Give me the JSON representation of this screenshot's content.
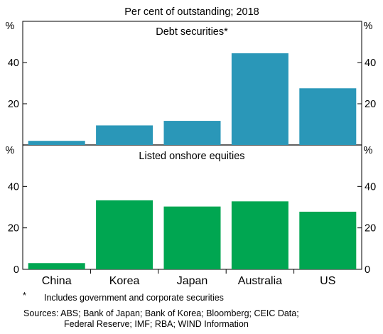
{
  "chart_data": [
    {
      "type": "bar",
      "title": "Debt securities*",
      "subtitle": "Per cent of outstanding; 2018",
      "categories": [
        "China",
        "Korea",
        "Japan",
        "Australia",
        "US"
      ],
      "values": [
        2,
        9.5,
        11.7,
        44.5,
        27.5
      ],
      "ylabel": "%",
      "ylim": [
        0,
        60
      ],
      "yticks": [
        20,
        40
      ],
      "color": "#2a97b8",
      "grid": false
    },
    {
      "type": "bar",
      "title": "Listed onshore equities",
      "categories": [
        "China",
        "Korea",
        "Japan",
        "Australia",
        "US"
      ],
      "values": [
        3,
        33.3,
        30.3,
        32.8,
        27.8
      ],
      "ylabel": "%",
      "ylim": [
        0,
        60
      ],
      "yticks": [
        0,
        20,
        40
      ],
      "color": "#00a651",
      "grid": false
    }
  ],
  "footnote": {
    "marker": "*",
    "text": "Includes government and corporate securities"
  },
  "sources": {
    "line1": "Sources: ABS; Bank of Japan; Bank of Korea; Bloomberg; CEIC Data;",
    "line2": "Federal Reserve; IMF; RBA; WIND Information"
  }
}
